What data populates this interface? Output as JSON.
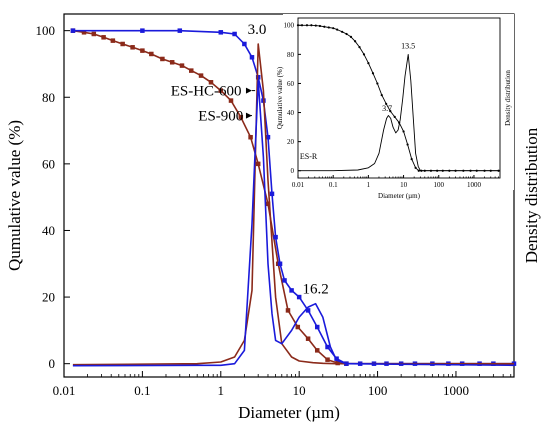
{
  "chart_data": [
    {
      "type": "line",
      "xlabel": "Diameter (µm)",
      "ylabel": "Qumulative value (%)",
      "y2label": "Density distribution",
      "xscale": "log",
      "xlim": [
        0.01,
        5500
      ],
      "ylim": [
        -4,
        105
      ],
      "xticks": [
        0.01,
        0.1,
        1,
        10,
        100,
        1000
      ],
      "xtick_labels": [
        "0.01",
        "0.1",
        "1",
        "10",
        "100",
        "1000"
      ],
      "yticks": [
        0,
        20,
        40,
        60,
        80,
        100
      ],
      "ytick_labels": [
        "0",
        "20",
        "40",
        "60",
        "80",
        "100"
      ],
      "grid": false,
      "legend": "none",
      "colors": {
        "brown": "#8b2a1a",
        "blue": "#1a1adb"
      },
      "series": [
        {
          "name": "ES-900",
          "kind": "cumulative",
          "color": "brown",
          "marker": "square",
          "x": [
            0.013,
            0.018,
            0.024,
            0.032,
            0.042,
            0.056,
            0.075,
            0.1,
            0.13,
            0.18,
            0.24,
            0.32,
            0.42,
            0.56,
            0.75,
            1.0,
            1.35,
            1.8,
            2.4,
            3.0,
            4.0,
            5.4,
            7.2,
            9.6,
            13,
            17,
            23,
            31,
            40
          ],
          "y": [
            100,
            99.5,
            99,
            98,
            97,
            96,
            95,
            94,
            93,
            91.5,
            90.5,
            89.5,
            88,
            86.5,
            84.5,
            82,
            79,
            74,
            68,
            60,
            48,
            30,
            16,
            11,
            7.5,
            4,
            1.2,
            0.2,
            0
          ]
        },
        {
          "name": "ES-HC-600",
          "kind": "cumulative",
          "color": "blue",
          "marker": "square",
          "x": [
            0.013,
            0.1,
            0.3,
            1.0,
            1.5,
            2.0,
            2.5,
            3.0,
            3.5,
            4.0,
            4.5,
            5.0,
            5.7,
            6.5,
            8.0,
            10,
            13,
            17,
            23,
            30,
            40,
            60,
            90,
            130,
            200,
            300,
            500,
            800,
            1200,
            2000,
            3000,
            5500
          ],
          "y": [
            100,
            100,
            100,
            99.5,
            99,
            96,
            92,
            86,
            79,
            68,
            51,
            38,
            30,
            25,
            22,
            20,
            16,
            11,
            5,
            1.5,
            0,
            0,
            0,
            0,
            0,
            0,
            0,
            0,
            0,
            0,
            0,
            0
          ]
        },
        {
          "name": "ES-900 density",
          "kind": "density",
          "color": "brown",
          "marker": "none",
          "x": [
            0.013,
            0.5,
            1.0,
            1.5,
            2.0,
            2.5,
            3.0,
            3.5,
            4.0,
            5.0,
            6.0,
            8.0,
            10,
            15,
            20,
            30,
            40,
            5500
          ],
          "y": [
            -0.3,
            0,
            0.5,
            2,
            7,
            22,
            96,
            82,
            55,
            20,
            6,
            2,
            0.8,
            0.3,
            0.1,
            0,
            0,
            0
          ]
        },
        {
          "name": "ES-HC-600 density",
          "kind": "density",
          "color": "blue",
          "marker": "none",
          "x": [
            0.013,
            0.5,
            1.0,
            1.5,
            2.0,
            2.5,
            3.0,
            3.5,
            4.0,
            4.5,
            5.0,
            6.0,
            8.0,
            10,
            13,
            16.2,
            20,
            25,
            30,
            40,
            5500
          ],
          "y": [
            -0.6,
            -0.5,
            -0.5,
            0,
            4,
            42,
            85,
            62,
            30,
            15,
            7,
            6,
            10,
            14,
            17,
            18,
            14,
            5,
            1,
            0,
            -0.5
          ]
        }
      ],
      "annotations": [
        {
          "text": "3.0",
          "x": 2.9,
          "y": 99
        },
        {
          "text": "16.2",
          "x": 16.2,
          "y": 21
        },
        {
          "text": "ES-HC-600",
          "x": 0.65,
          "y": 80.5
        },
        {
          "text": "ES-900",
          "x": 1.0,
          "y": 73
        }
      ]
    },
    {
      "type": "line",
      "title": "",
      "xlabel": "Diameter (µm)",
      "ylabel": "Qumulative value (%)",
      "y2label": "Density distribution",
      "xscale": "log",
      "xlim": [
        0.01,
        5500
      ],
      "ylim": [
        -5,
        105
      ],
      "xticks": [
        0.01,
        0.1,
        1,
        10,
        100,
        1000
      ],
      "xtick_labels": [
        "0.01",
        "0.1",
        "1",
        "10",
        "100",
        "1000"
      ],
      "yticks": [
        0,
        20,
        40,
        60,
        80,
        100
      ],
      "ytick_labels": [
        "0",
        "20",
        "40",
        "60",
        "80",
        "100"
      ],
      "series": [
        {
          "name": "ES-R",
          "kind": "cumulative",
          "color": "#000000",
          "marker": "dot",
          "x": [
            0.01,
            0.013,
            0.018,
            0.024,
            0.032,
            0.042,
            0.056,
            0.075,
            0.1,
            0.13,
            0.18,
            0.24,
            0.32,
            0.42,
            0.56,
            0.75,
            1.0,
            1.35,
            1.8,
            2.4,
            3.2,
            4.2,
            5.6,
            7.5,
            10,
            13,
            17,
            22,
            27,
            32,
            40,
            60,
            90,
            130,
            200,
            300,
            500,
            800,
            1200,
            2000,
            3000,
            5000
          ],
          "y": [
            100,
            100,
            100,
            100,
            99.8,
            99.5,
            99,
            98.5,
            98,
            97,
            95.5,
            94,
            92,
            89,
            85,
            80,
            74,
            67,
            60,
            52,
            46,
            41,
            37,
            33,
            27,
            18,
            8,
            2,
            0,
            0,
            0,
            0,
            0,
            0,
            0,
            0,
            0,
            0,
            0,
            0,
            0,
            0
          ]
        },
        {
          "name": "ES-R density",
          "kind": "density",
          "color": "#000000",
          "marker": "none",
          "x": [
            0.01,
            0.1,
            0.5,
            1.0,
            1.5,
            2.0,
            2.7,
            3.3,
            3.7,
            4.3,
            5.0,
            6.0,
            7.0,
            8.0,
            9.5,
            11,
            13.5,
            16,
            19,
            22,
            26,
            30,
            40,
            100,
            5000
          ],
          "y": [
            0,
            0,
            0.5,
            2,
            5,
            12,
            28,
            36,
            38,
            36,
            30,
            26,
            28,
            35,
            50,
            65,
            80,
            62,
            35,
            12,
            3,
            0,
            0,
            0,
            0
          ]
        }
      ],
      "annotations": [
        {
          "text": "13.5",
          "x": 13.5,
          "y": 84
        },
        {
          "text": "3.7",
          "x": 3.4,
          "y": 41
        },
        {
          "text": "ES-R",
          "x": 0.02,
          "y": 8
        }
      ]
    }
  ]
}
